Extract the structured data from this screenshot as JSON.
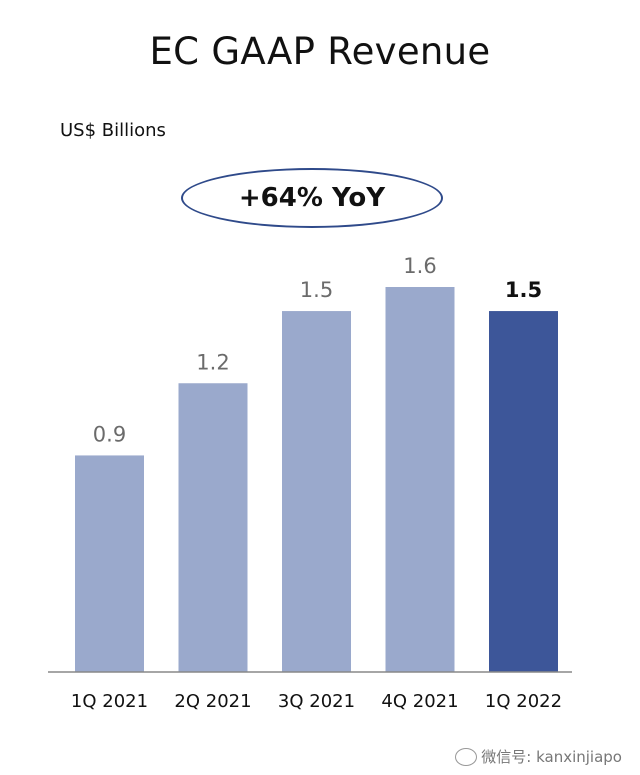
{
  "chart_data": {
    "type": "bar",
    "title": "EC GAAP Revenue",
    "unit_label": "US$ Billions",
    "callout": "+64% YoY",
    "categories": [
      "1Q 2021",
      "2Q 2021",
      "3Q 2021",
      "4Q 2021",
      "1Q 2022"
    ],
    "values": [
      0.9,
      1.2,
      1.5,
      1.6,
      1.5
    ],
    "value_labels": [
      "0.9",
      "1.2",
      "1.5",
      "1.6",
      "1.5"
    ],
    "highlight_index": 4,
    "colors": {
      "bar": "#9aa9cc",
      "highlight": "#3d5699",
      "axis": "#888888",
      "callout_border": "#2f4a8a"
    },
    "ylim": [
      0,
      1.6
    ],
    "grid": false,
    "legend": "none"
  },
  "watermark": {
    "text": "微信号: kanxinjiapo"
  }
}
